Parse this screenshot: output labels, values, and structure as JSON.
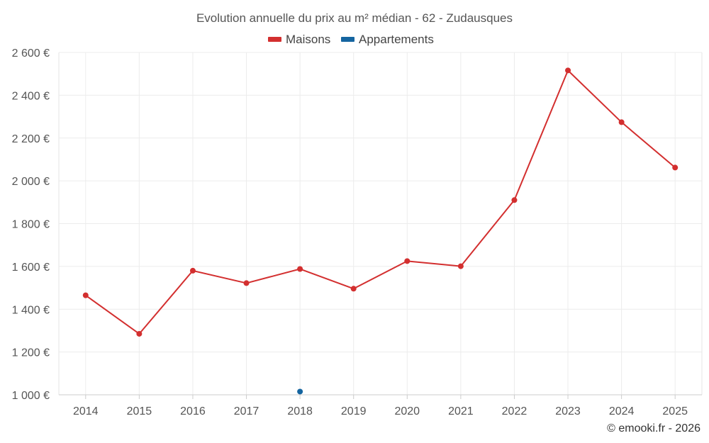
{
  "chart_data": {
    "type": "line",
    "title": "Evolution annuelle du prix au m² médian - 62 - Zudausques",
    "categories": [
      "2014",
      "2015",
      "2016",
      "2017",
      "2018",
      "2019",
      "2020",
      "2021",
      "2022",
      "2023",
      "2024",
      "2025"
    ],
    "series": [
      {
        "name": "Maisons",
        "color": "#d32f2f",
        "values": [
          1465,
          1285,
          1580,
          1522,
          1588,
          1496,
          1625,
          1601,
          1910,
          2516,
          2274,
          2062
        ]
      },
      {
        "name": "Appartements",
        "color": "#1565a0",
        "values": [
          null,
          null,
          null,
          null,
          1015,
          null,
          null,
          null,
          null,
          null,
          null,
          null
        ]
      }
    ],
    "y_ticks": [
      1000,
      1200,
      1400,
      1600,
      1800,
      2000,
      2200,
      2400,
      2600
    ],
    "y_tick_labels": [
      "1 000 €",
      "1 200 €",
      "1 400 €",
      "1 600 €",
      "1 800 €",
      "2 000 €",
      "2 200 €",
      "2 400 €",
      "2 600 €"
    ],
    "ylim": [
      1000,
      2600
    ],
    "grid": true,
    "legend_position": "top-center",
    "xlabel": "",
    "ylabel": ""
  },
  "credit": "© emooki.fr - 2026"
}
